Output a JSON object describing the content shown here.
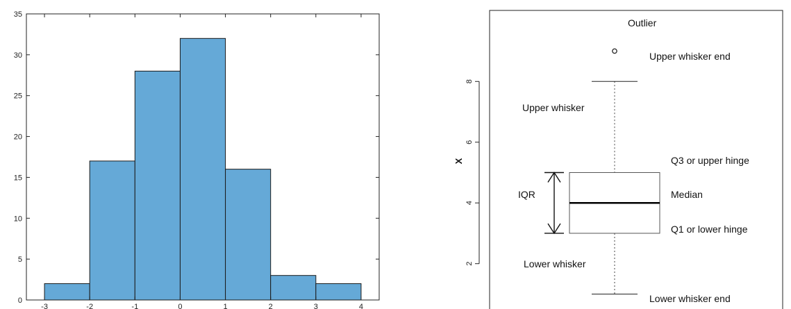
{
  "chart_data": [
    {
      "type": "bar",
      "categories": [
        "-3 to -2",
        "-2 to -1",
        "-1 to 0",
        "0 to 1",
        "1 to 2",
        "2 to 3",
        "3 to 4"
      ],
      "bin_edges": [
        -3,
        -2,
        -1,
        0,
        1,
        2,
        3,
        4
      ],
      "values": [
        2,
        17,
        28,
        32,
        16,
        3,
        2
      ],
      "xlim": [
        -3.4,
        4.4
      ],
      "ylim": [
        0,
        35
      ],
      "yticks": [
        0,
        5,
        10,
        15,
        20,
        25,
        30,
        35
      ],
      "xticks": [
        -3,
        -2,
        -1,
        0,
        1,
        2,
        3,
        4
      ],
      "xtick_labels": [
        "-3",
        "-2",
        "-1",
        "0",
        "1",
        "2",
        "3",
        "4"
      ],
      "bar_color": "#65a9d7",
      "grid": false,
      "title": "",
      "xlabel": "",
      "ylabel": ""
    },
    {
      "type": "boxplot",
      "ylabel": "X",
      "ylim": [
        0.85,
        9.95
      ],
      "yticks": [
        2,
        4,
        6,
        8
      ],
      "outlier": 9,
      "upper_whisker_end": 8,
      "q3": 5,
      "median": 4,
      "q1": 3,
      "lower_whisker_end": 1,
      "annotations": {
        "outlier": "Outlier",
        "upper_whisker_end": "Upper whisker end",
        "upper_whisker": "Upper whisker",
        "q3": "Q3 or upper hinge",
        "median": "Median",
        "iqr": "IQR",
        "q1": "Q1 or lower hinge",
        "lower_whisker": "Lower whisker",
        "lower_whisker_end": "Lower whisker end"
      }
    }
  ]
}
